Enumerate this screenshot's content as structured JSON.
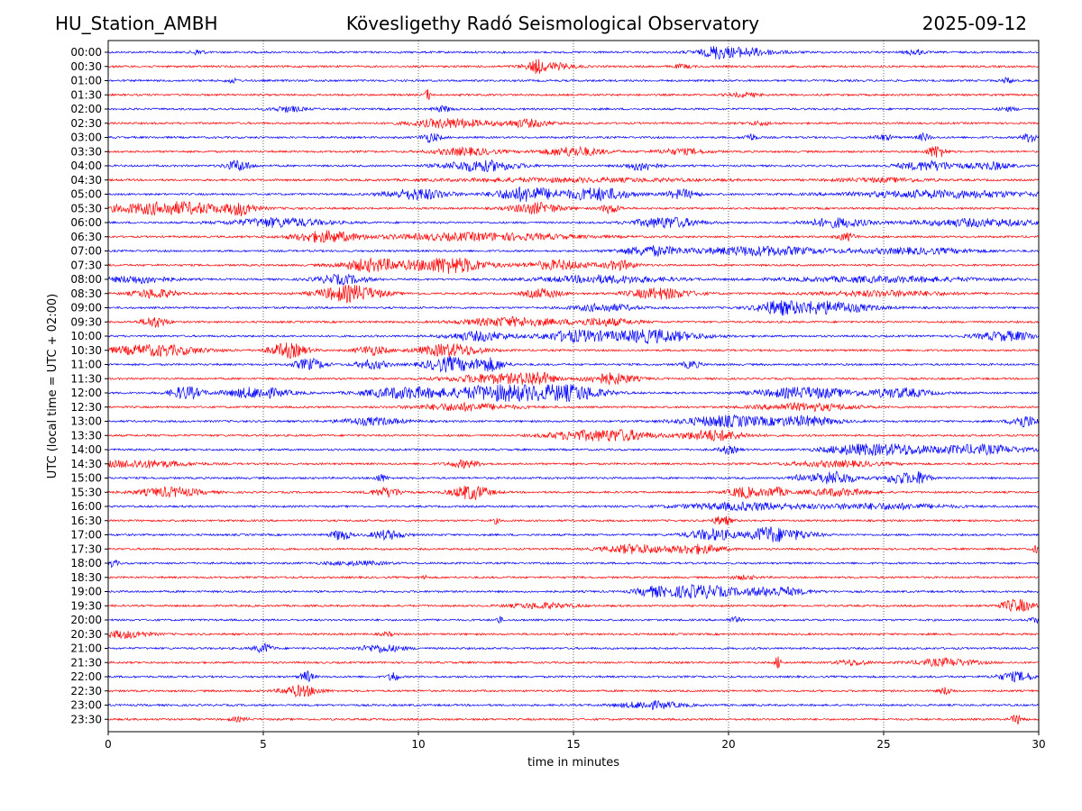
{
  "header": {
    "station": "HU_Station_AMBH",
    "observatory": "Kövesligethy Radó Seismological Observatory",
    "date": "2025-09-12"
  },
  "chart_data": {
    "type": "line",
    "title": "Kövesligethy Radó Seismological Observatory",
    "xlabel": "time in minutes",
    "ylabel": "UTC (local time = UTC + 02:00)",
    "xlim": [
      0,
      30
    ],
    "x_ticks": [
      0,
      5,
      10,
      15,
      20,
      25,
      30
    ],
    "grid": "vertical dotted lines at x ticks",
    "trace_colors": [
      "#0000ff",
      "#ff0000"
    ],
    "rows": [
      {
        "label": "00:00",
        "color": "#0000ff",
        "bursts": [
          [
            2.9,
            0.2,
            3
          ],
          [
            20.3,
            1.2,
            5
          ],
          [
            19.6,
            0.3,
            4
          ],
          [
            26.0,
            0.3,
            3
          ]
        ]
      },
      {
        "label": "00:30",
        "color": "#ff0000",
        "bursts": [
          [
            14.2,
            0.8,
            4
          ],
          [
            13.8,
            0.2,
            5
          ],
          [
            18.5,
            0.3,
            2
          ]
        ]
      },
      {
        "label": "01:00",
        "color": "#0000ff",
        "bursts": [
          [
            29.0,
            0.2,
            3
          ],
          [
            4.0,
            0.2,
            2
          ]
        ]
      },
      {
        "label": "01:30",
        "color": "#ff0000",
        "bursts": [
          [
            10.3,
            0.1,
            6
          ],
          [
            20.5,
            0.5,
            2
          ]
        ]
      },
      {
        "label": "02:00",
        "color": "#0000ff",
        "bursts": [
          [
            5.8,
            0.5,
            3
          ],
          [
            10.8,
            0.3,
            3
          ],
          [
            29.0,
            0.3,
            2
          ]
        ]
      },
      {
        "label": "02:30",
        "color": "#ff0000",
        "bursts": [
          [
            11.0,
            1.2,
            5
          ],
          [
            13.5,
            0.8,
            4
          ],
          [
            21.0,
            0.4,
            2
          ]
        ]
      },
      {
        "label": "03:00",
        "color": "#0000ff",
        "bursts": [
          [
            10.4,
            0.3,
            5
          ],
          [
            20.7,
            0.2,
            4
          ],
          [
            26.3,
            0.2,
            4
          ],
          [
            29.8,
            0.3,
            6
          ],
          [
            25.0,
            0.3,
            3
          ]
        ]
      },
      {
        "label": "03:30",
        "color": "#ff0000",
        "bursts": [
          [
            11.5,
            1.0,
            4
          ],
          [
            15.0,
            1.0,
            5
          ],
          [
            18.5,
            0.8,
            3
          ],
          [
            26.7,
            0.3,
            7
          ]
        ]
      },
      {
        "label": "04:00",
        "color": "#0000ff",
        "bursts": [
          [
            4.2,
            0.4,
            6
          ],
          [
            12.0,
            1.2,
            6
          ],
          [
            17.2,
            0.5,
            5
          ],
          [
            26.5,
            1.0,
            5
          ],
          [
            28.5,
            0.6,
            4
          ]
        ]
      },
      {
        "label": "04:30",
        "color": "#ff0000",
        "bursts": [
          [
            15.0,
            4.0,
            2
          ],
          [
            25.0,
            1.5,
            2
          ]
        ]
      },
      {
        "label": "05:00",
        "color": "#0000ff",
        "bursts": [
          [
            10.0,
            1.0,
            6
          ],
          [
            13.5,
            1.0,
            8
          ],
          [
            15.8,
            1.0,
            7
          ],
          [
            18.5,
            0.5,
            5
          ],
          [
            27.0,
            3.0,
            4
          ]
        ]
      },
      {
        "label": "05:30",
        "color": "#ff0000",
        "bursts": [
          [
            2.0,
            2.0,
            7
          ],
          [
            4.3,
            0.4,
            6
          ],
          [
            13.8,
            0.8,
            6
          ],
          [
            16.2,
            0.3,
            5
          ]
        ]
      },
      {
        "label": "06:00",
        "color": "#0000ff",
        "bursts": [
          [
            5.5,
            1.5,
            5
          ],
          [
            18.0,
            1.0,
            6
          ],
          [
            23.5,
            1.0,
            5
          ],
          [
            28.0,
            2.0,
            4
          ]
        ]
      },
      {
        "label": "06:30",
        "color": "#ff0000",
        "bursts": [
          [
            7.0,
            1.0,
            6
          ],
          [
            12.0,
            3.0,
            4
          ],
          [
            23.8,
            0.3,
            4
          ]
        ]
      },
      {
        "label": "07:00",
        "color": "#0000ff",
        "bursts": [
          [
            17.5,
            1.0,
            5
          ],
          [
            21.0,
            2.0,
            5
          ],
          [
            26.0,
            2.0,
            3
          ]
        ]
      },
      {
        "label": "07:30",
        "color": "#ff0000",
        "bursts": [
          [
            8.5,
            1.0,
            7
          ],
          [
            11.0,
            1.2,
            9
          ],
          [
            14.5,
            1.0,
            5
          ],
          [
            16.5,
            0.5,
            5
          ]
        ]
      },
      {
        "label": "08:00",
        "color": "#0000ff",
        "bursts": [
          [
            1.0,
            1.0,
            4
          ],
          [
            7.5,
            0.8,
            5
          ],
          [
            16.0,
            2.0,
            4
          ],
          [
            25.0,
            3.0,
            3
          ]
        ]
      },
      {
        "label": "08:30",
        "color": "#ff0000",
        "bursts": [
          [
            1.5,
            0.7,
            5
          ],
          [
            7.8,
            1.0,
            9
          ],
          [
            14.0,
            0.6,
            5
          ],
          [
            17.8,
            1.0,
            6
          ],
          [
            25.0,
            2.0,
            3
          ]
        ]
      },
      {
        "label": "09:00",
        "color": "#0000ff",
        "bursts": [
          [
            16.0,
            1.0,
            4
          ],
          [
            23.0,
            1.5,
            7
          ],
          [
            21.5,
            0.6,
            5
          ]
        ]
      },
      {
        "label": "09:30",
        "color": "#ff0000",
        "bursts": [
          [
            1.5,
            0.4,
            6
          ],
          [
            13.0,
            1.5,
            5
          ],
          [
            16.0,
            1.0,
            4
          ]
        ]
      },
      {
        "label": "10:00",
        "color": "#0000ff",
        "bursts": [
          [
            15.0,
            1.0,
            6
          ],
          [
            17.5,
            1.5,
            7
          ],
          [
            12.0,
            1.0,
            5
          ],
          [
            29.0,
            1.0,
            5
          ]
        ]
      },
      {
        "label": "10:30",
        "color": "#ff0000",
        "bursts": [
          [
            1.5,
            1.5,
            6
          ],
          [
            5.8,
            0.6,
            8
          ],
          [
            11.0,
            1.0,
            7
          ],
          [
            8.5,
            0.5,
            5
          ]
        ]
      },
      {
        "label": "11:00",
        "color": "#0000ff",
        "bursts": [
          [
            6.5,
            0.5,
            6
          ],
          [
            11.0,
            0.8,
            8
          ],
          [
            12.3,
            0.5,
            7
          ],
          [
            8.5,
            0.5,
            5
          ],
          [
            18.8,
            0.3,
            4
          ]
        ]
      },
      {
        "label": "11:30",
        "color": "#ff0000",
        "bursts": [
          [
            12.5,
            1.5,
            5
          ],
          [
            16.2,
            0.8,
            6
          ],
          [
            13.8,
            0.5,
            6
          ]
        ]
      },
      {
        "label": "12:00",
        "color": "#0000ff",
        "bursts": [
          [
            2.5,
            0.5,
            7
          ],
          [
            4.8,
            1.0,
            6
          ],
          [
            9.5,
            1.2,
            6
          ],
          [
            12.8,
            1.8,
            9
          ],
          [
            15.0,
            1.0,
            7
          ],
          [
            22.5,
            1.5,
            6
          ],
          [
            25.5,
            1.0,
            5
          ]
        ]
      },
      {
        "label": "12:30",
        "color": "#ff0000",
        "bursts": [
          [
            11.5,
            1.5,
            4
          ],
          [
            22.5,
            1.5,
            4
          ]
        ]
      },
      {
        "label": "13:00",
        "color": "#0000ff",
        "bursts": [
          [
            20.0,
            1.5,
            6
          ],
          [
            22.5,
            1.0,
            5
          ],
          [
            29.5,
            0.4,
            7
          ],
          [
            8.5,
            1.0,
            4
          ]
        ]
      },
      {
        "label": "13:30",
        "color": "#ff0000",
        "bursts": [
          [
            16.5,
            1.0,
            6
          ],
          [
            19.5,
            1.0,
            6
          ],
          [
            15.0,
            1.0,
            4
          ]
        ]
      },
      {
        "label": "14:00",
        "color": "#0000ff",
        "bursts": [
          [
            24.0,
            1.0,
            5
          ],
          [
            25.5,
            1.0,
            5
          ],
          [
            28.0,
            1.5,
            5
          ],
          [
            20.0,
            0.3,
            4
          ]
        ]
      },
      {
        "label": "14:30",
        "color": "#ff0000",
        "bursts": [
          [
            1.0,
            1.5,
            4
          ],
          [
            11.5,
            0.5,
            4
          ],
          [
            23.5,
            1.5,
            3
          ]
        ]
      },
      {
        "label": "15:00",
        "color": "#0000ff",
        "bursts": [
          [
            23.4,
            0.7,
            7
          ],
          [
            25.5,
            0.5,
            6
          ],
          [
            26.2,
            0.3,
            6
          ],
          [
            8.8,
            0.2,
            4
          ],
          [
            22.2,
            0.2,
            4
          ]
        ]
      },
      {
        "label": "15:30",
        "color": "#ff0000",
        "bursts": [
          [
            2.0,
            1.0,
            5
          ],
          [
            9.0,
            0.5,
            5
          ],
          [
            11.7,
            0.6,
            8
          ],
          [
            20.5,
            0.5,
            6
          ],
          [
            21.5,
            0.4,
            5
          ],
          [
            23.5,
            1.0,
            4
          ]
        ]
      },
      {
        "label": "16:00",
        "color": "#0000ff",
        "bursts": [
          [
            20.5,
            2.0,
            4
          ],
          [
            25.0,
            2.0,
            3
          ]
        ]
      },
      {
        "label": "16:30",
        "color": "#ff0000",
        "bursts": [
          [
            19.8,
            0.3,
            5
          ],
          [
            12.5,
            0.1,
            3
          ]
        ]
      },
      {
        "label": "17:00",
        "color": "#0000ff",
        "bursts": [
          [
            7.5,
            0.3,
            6
          ],
          [
            9.0,
            0.5,
            5
          ],
          [
            19.5,
            0.8,
            6
          ],
          [
            21.2,
            0.5,
            7
          ],
          [
            22.0,
            0.8,
            5
          ]
        ]
      },
      {
        "label": "17:30",
        "color": "#ff0000",
        "bursts": [
          [
            17.0,
            1.0,
            5
          ],
          [
            19.0,
            0.8,
            5
          ],
          [
            29.9,
            0.1,
            4
          ]
        ]
      },
      {
        "label": "18:00",
        "color": "#0000ff",
        "bursts": [
          [
            0.1,
            0.2,
            4
          ],
          [
            8.0,
            1.0,
            2
          ]
        ]
      },
      {
        "label": "18:30",
        "color": "#ff0000",
        "bursts": [
          [
            10.2,
            0.05,
            5
          ],
          [
            20.5,
            0.4,
            2
          ]
        ]
      },
      {
        "label": "19:00",
        "color": "#0000ff",
        "bursts": [
          [
            19.0,
            1.2,
            7
          ],
          [
            21.5,
            1.0,
            5
          ],
          [
            17.5,
            0.5,
            4
          ]
        ]
      },
      {
        "label": "19:30",
        "color": "#ff0000",
        "bursts": [
          [
            29.3,
            0.5,
            7
          ],
          [
            14.0,
            1.0,
            3
          ]
        ]
      },
      {
        "label": "20:00",
        "color": "#0000ff",
        "bursts": [
          [
            12.6,
            0.1,
            4
          ],
          [
            20.2,
            0.2,
            3
          ],
          [
            29.9,
            0.2,
            3
          ]
        ]
      },
      {
        "label": "20:30",
        "color": "#ff0000",
        "bursts": [
          [
            0.5,
            0.8,
            4
          ],
          [
            9.0,
            0.2,
            2
          ]
        ]
      },
      {
        "label": "21:00",
        "color": "#0000ff",
        "bursts": [
          [
            5.0,
            0.3,
            5
          ],
          [
            8.8,
            0.7,
            4
          ]
        ]
      },
      {
        "label": "21:30",
        "color": "#ff0000",
        "bursts": [
          [
            21.6,
            0.1,
            7
          ],
          [
            27.0,
            1.0,
            4
          ],
          [
            24.0,
            0.5,
            3
          ]
        ]
      },
      {
        "label": "22:00",
        "color": "#0000ff",
        "bursts": [
          [
            6.4,
            0.2,
            6
          ],
          [
            9.2,
            0.15,
            6
          ],
          [
            29.3,
            0.6,
            5
          ]
        ]
      },
      {
        "label": "22:30",
        "color": "#ff0000",
        "bursts": [
          [
            6.2,
            0.6,
            6
          ],
          [
            27.0,
            0.2,
            4
          ]
        ]
      },
      {
        "label": "23:00",
        "color": "#0000ff",
        "bursts": [
          [
            17.5,
            1.0,
            4
          ]
        ]
      },
      {
        "label": "23:30",
        "color": "#ff0000",
        "bursts": [
          [
            29.3,
            0.2,
            5
          ],
          [
            4.2,
            0.3,
            2
          ]
        ]
      }
    ]
  }
}
